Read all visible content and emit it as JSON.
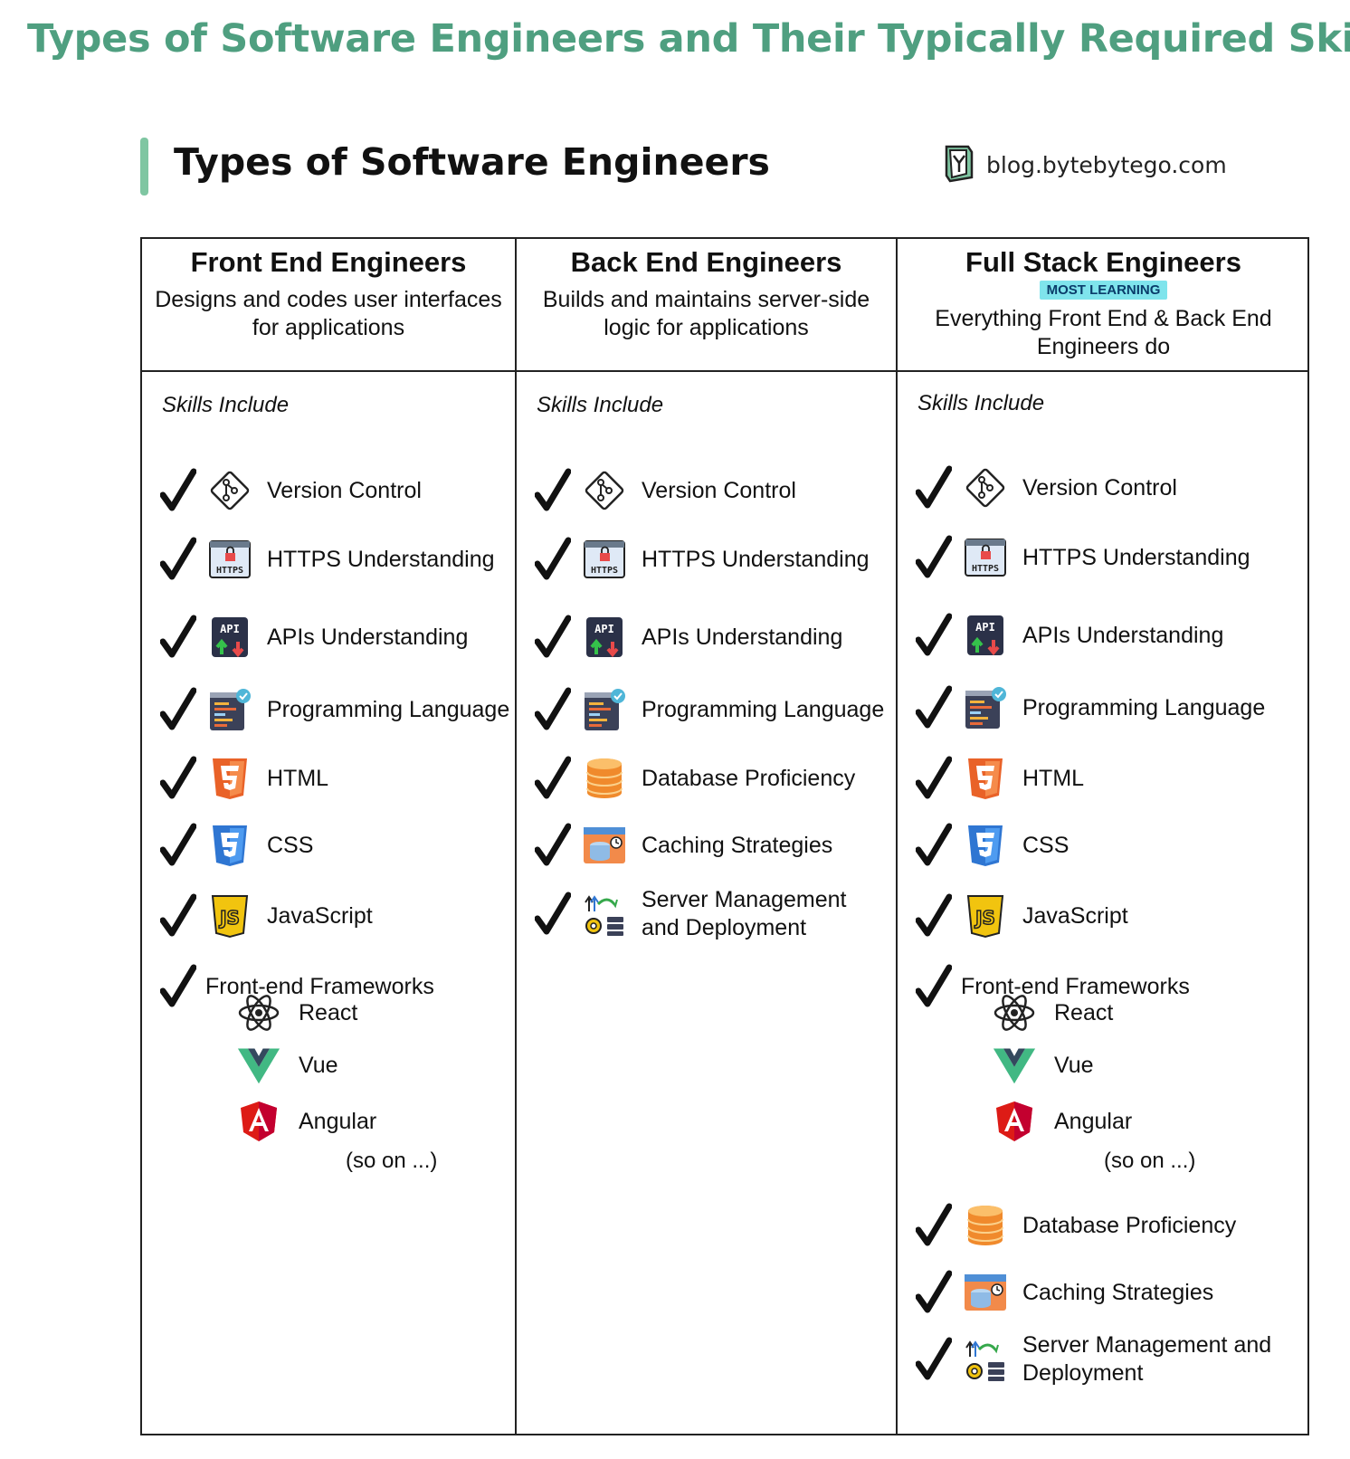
{
  "page_title": "Types of Software Engineers and Their Typically Required Skills",
  "card_title": "Types of Software Engineers",
  "brand": "blog.bytebytego.com",
  "colors": {
    "title_green": "#4f9f80",
    "accent_bar": "#7fc6a2",
    "badge_bg": "#7fe4ec"
  },
  "columns": [
    {
      "title": "Front End Engineers",
      "badge": "",
      "description": "Designs and codes user interfaces for applications",
      "skills_label": "Skills Include",
      "skills": [
        {
          "label": "Version Control",
          "icon": "git-icon"
        },
        {
          "label": "HTTPS Understanding",
          "icon": "https-icon"
        },
        {
          "label": "APIs Understanding",
          "icon": "api-icon"
        },
        {
          "label": "Programming Language",
          "icon": "code-editor-icon"
        },
        {
          "label": "HTML",
          "icon": "html5-icon"
        },
        {
          "label": "CSS",
          "icon": "css3-icon"
        },
        {
          "label": "JavaScript",
          "icon": "javascript-icon"
        },
        {
          "label": "Front-end Frameworks",
          "icon": ""
        }
      ],
      "frameworks": [
        {
          "label": "React",
          "icon": "react-icon"
        },
        {
          "label": "Vue",
          "icon": "vue-icon"
        },
        {
          "label": "Angular",
          "icon": "angular-icon"
        }
      ],
      "so_on": "(so on ...)"
    },
    {
      "title": "Back End Engineers",
      "badge": "",
      "description": "Builds and maintains server-side logic for applications",
      "skills_label": "Skills Include",
      "skills": [
        {
          "label": "Version Control",
          "icon": "git-icon"
        },
        {
          "label": "HTTPS Understanding",
          "icon": "https-icon"
        },
        {
          "label": "APIs Understanding",
          "icon": "api-icon"
        },
        {
          "label": "Programming Language",
          "icon": "code-editor-icon"
        },
        {
          "label": "Database Proficiency",
          "icon": "database-icon"
        },
        {
          "label": "Caching Strategies",
          "icon": "cache-icon"
        },
        {
          "label": "Server Management and Deployment",
          "icon": "server-deploy-icon"
        }
      ]
    },
    {
      "title": "Full Stack Engineers",
      "badge": "MOST LEARNING",
      "description": "Everything Front End & Back End Engineers do",
      "skills_label": "Skills Include",
      "skills": [
        {
          "label": "Version Control",
          "icon": "git-icon"
        },
        {
          "label": "HTTPS Understanding",
          "icon": "https-icon"
        },
        {
          "label": "APIs Understanding",
          "icon": "api-icon"
        },
        {
          "label": "Programming Language",
          "icon": "code-editor-icon"
        },
        {
          "label": "HTML",
          "icon": "html5-icon"
        },
        {
          "label": "CSS",
          "icon": "css3-icon"
        },
        {
          "label": "JavaScript",
          "icon": "javascript-icon"
        },
        {
          "label": "Front-end Frameworks",
          "icon": ""
        },
        {
          "label": "Database Proficiency",
          "icon": "database-icon"
        },
        {
          "label": "Caching Strategies",
          "icon": "cache-icon"
        },
        {
          "label": "Server Management and Deployment",
          "icon": "server-deploy-icon"
        }
      ],
      "frameworks": [
        {
          "label": "React",
          "icon": "react-icon"
        },
        {
          "label": "Vue",
          "icon": "vue-icon"
        },
        {
          "label": "Angular",
          "icon": "angular-icon"
        }
      ],
      "so_on": "(so on ...)"
    }
  ]
}
